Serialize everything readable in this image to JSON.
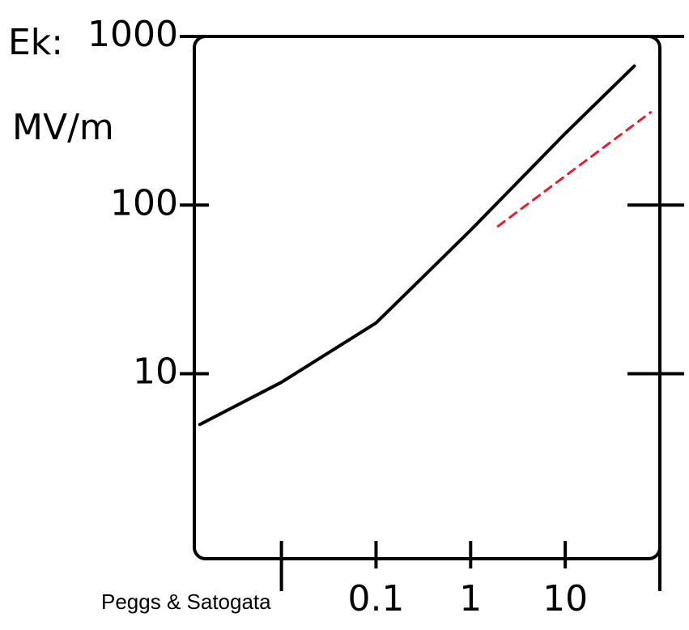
{
  "chart_data": {
    "type": "line",
    "y_symbol": "Ek:",
    "y_unit": "MV/m",
    "xlog": true,
    "ylog": true,
    "xlim": [
      0.0012,
      100
    ],
    "ylim": [
      0.8,
      1000
    ],
    "xticks": [
      0.1,
      1,
      10
    ],
    "xminor_ticks": [
      0.01,
      100
    ],
    "yticks": [
      10,
      100,
      1000
    ],
    "series": [
      {
        "color": "#000000",
        "dashed": false,
        "x": [
          0.00137,
          0.01,
          0.1,
          1,
          10,
          53.7
        ],
        "values": [
          5.0,
          8.9,
          20,
          71,
          266,
          668
        ]
      },
      {
        "color": "#e0202a",
        "dashed": true,
        "x": [
          1.95,
          80
        ],
        "values": [
          75,
          355
        ]
      }
    ]
  },
  "footer": "Peggs & Satogata"
}
